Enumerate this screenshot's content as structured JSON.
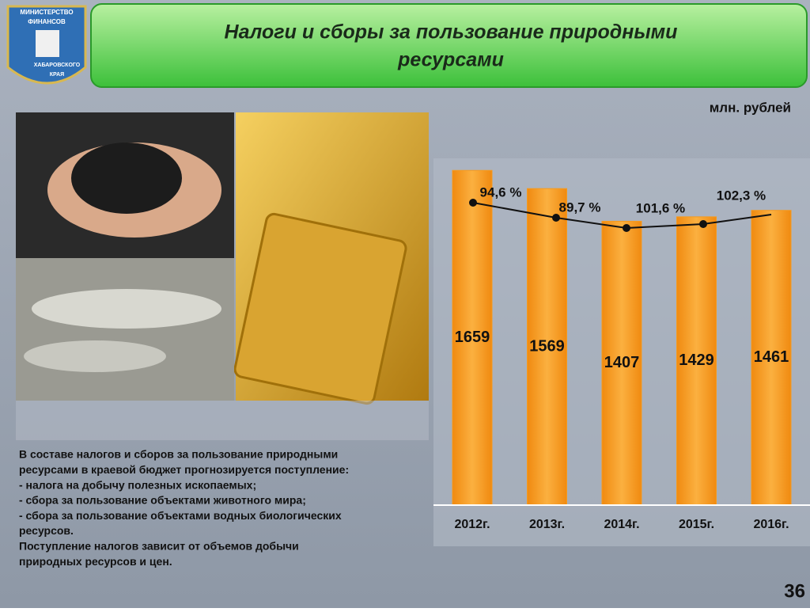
{
  "logo": {
    "lines": [
      "МИНИСТЕРСТВО",
      "ФИНАНСОВ",
      "ХАБАРОВСКОГО",
      "КРАЯ"
    ]
  },
  "header": {
    "title": [
      "Налоги и сборы за пользование природными",
      "ресурсами"
    ]
  },
  "chart_data": {
    "type": "bar",
    "unit": "млн. рублей",
    "categories": [
      "2012г.",
      "2013г.",
      "2014г.",
      "2015г.",
      "2016г."
    ],
    "values": [
      1659,
      1569,
      1407,
      1429,
      1461
    ],
    "color": "#f59a1e",
    "ylim": [
      0,
      1660
    ],
    "annotations": [
      "94,6 %",
      "89,7 %",
      "101,6 %",
      "102,3 %"
    ]
  },
  "body": {
    "lines": [
      "В составе налогов и сборов за пользование природными",
      "ресурсами в краевой бюджет прогнозируется поступление:",
      "- налога на добычу полезных ископаемых;",
      "- сбора за пользование объектами животного мира;",
      "- сбора за пользование объектами водных биологических",
      "ресурсов.",
      "Поступление налогов зависит от объемов добычи",
      "природных ресурсов и цен."
    ]
  },
  "page_number": "36"
}
